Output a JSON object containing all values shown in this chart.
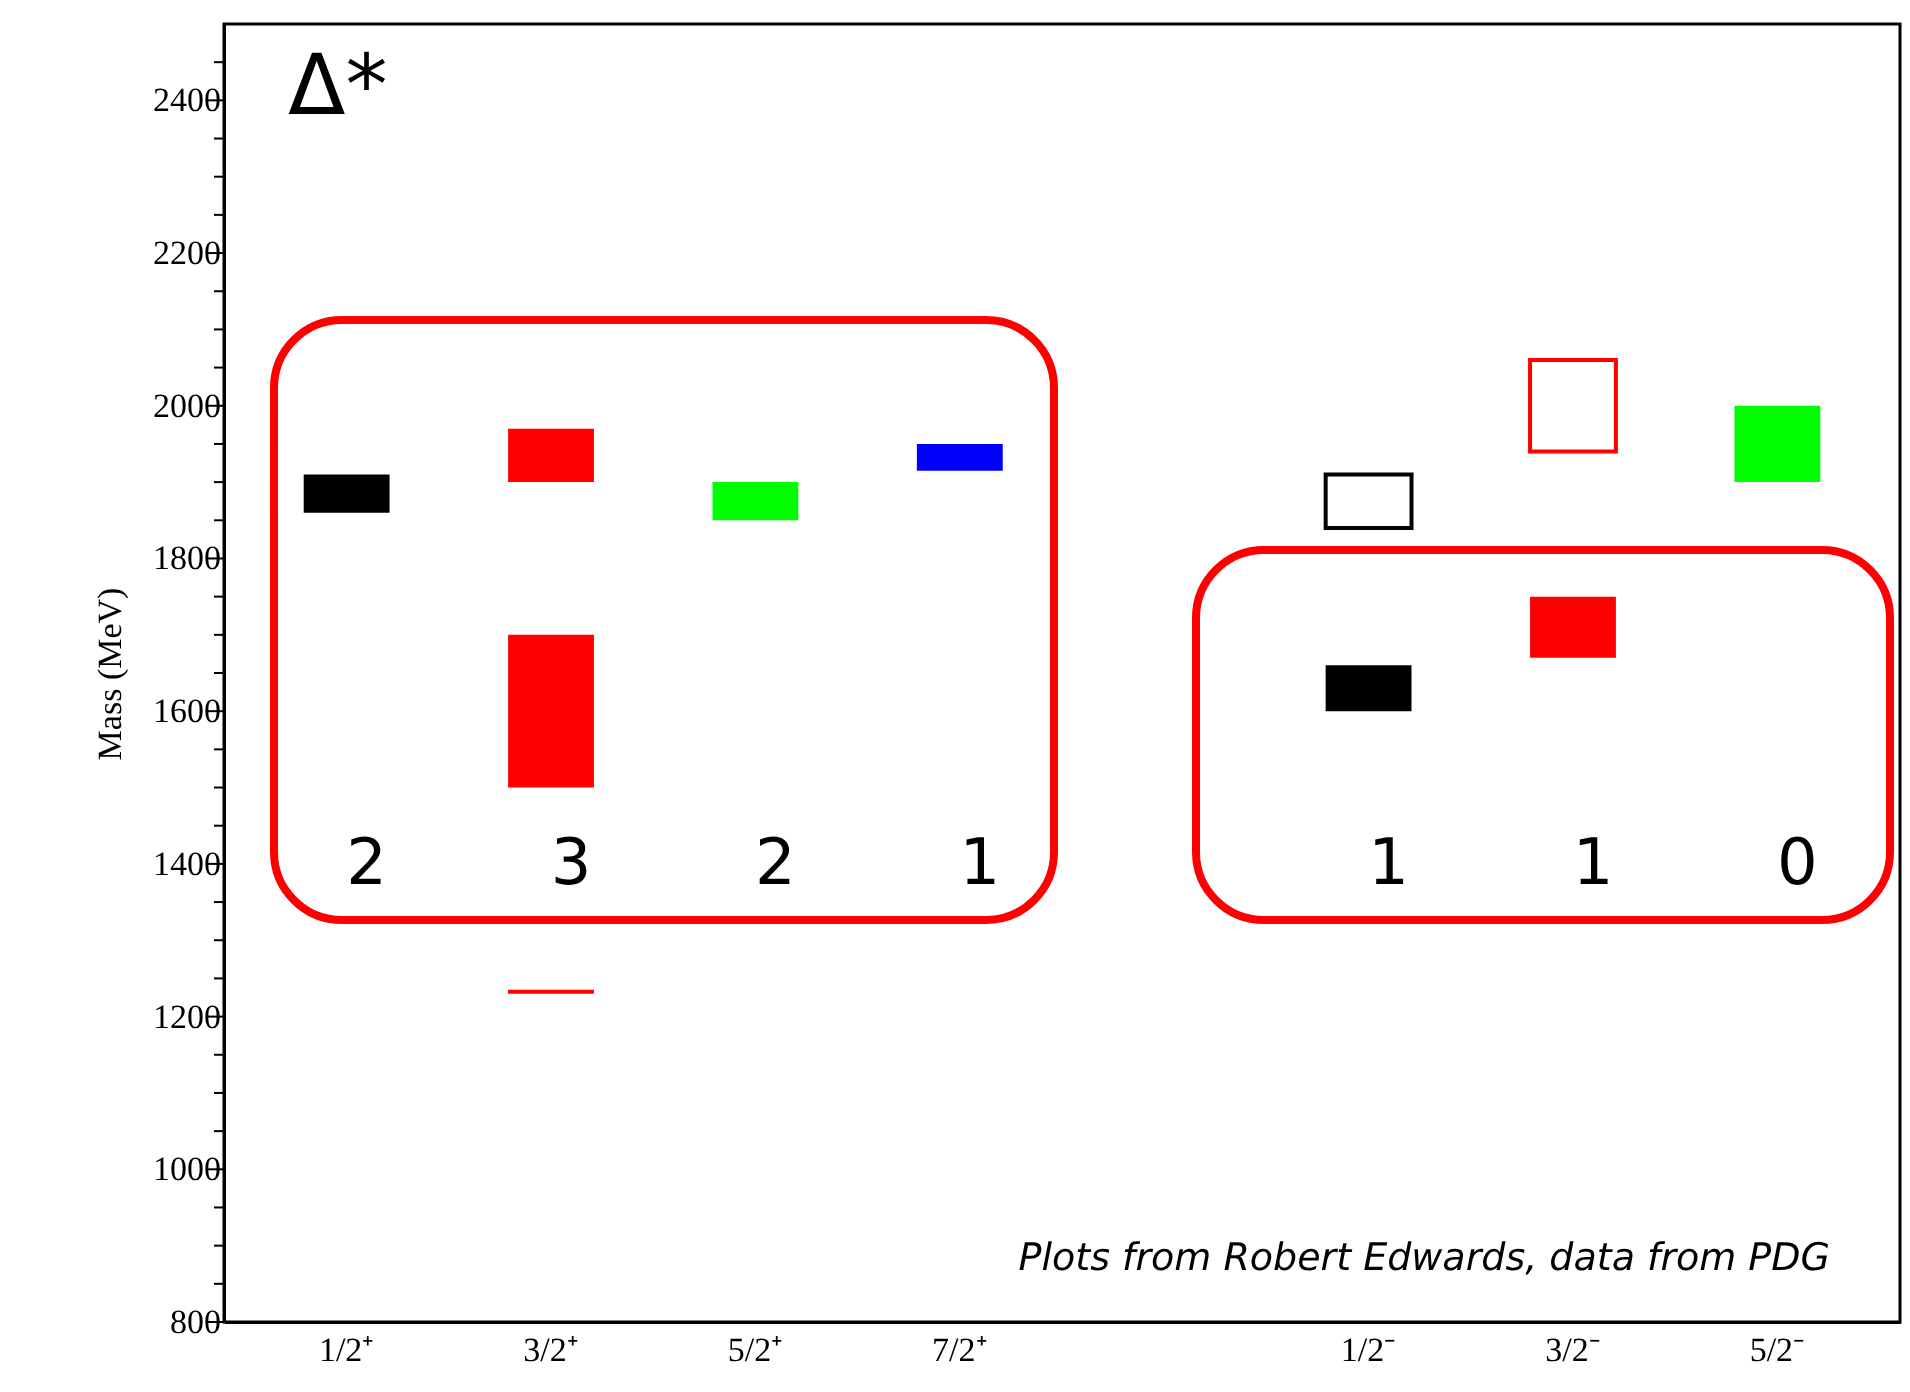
{
  "chart_data": {
    "type": "bar",
    "title": "Δ*",
    "ylabel": "Mass (MeV)",
    "categories": [
      "1/2⁺",
      "3/2⁺",
      "5/2⁺",
      "7/2⁺",
      null,
      "1/2⁻",
      "3/2⁻",
      "5/2⁻"
    ],
    "series": [
      {
        "colors": [
          "#000000",
          "#ff0000",
          "#00ff00",
          "#0000ff",
          null,
          "#000000",
          "#ff0000",
          "#00ff00"
        ],
        "base": [
          1860,
          1900,
          1850,
          1915,
          null,
          1600,
          1670,
          1900
        ],
        "values": [
          50,
          70,
          50,
          35,
          null,
          60,
          80,
          100
        ]
      },
      {
        "color": "#ff0000",
        "base": [
          null,
          1500,
          null,
          null,
          null,
          null,
          null,
          null
        ],
        "values": [
          null,
          200,
          null,
          null,
          null,
          null,
          null,
          null
        ]
      },
      {
        "color": "#ff0000",
        "base": [
          null,
          1230,
          null,
          null,
          null,
          null,
          null,
          null
        ],
        "values": [
          null,
          5,
          null,
          null,
          null,
          null,
          null,
          null
        ]
      },
      {
        "colors": [
          null,
          null,
          null,
          null,
          null,
          "#000000",
          "#ff0000",
          null
        ],
        "line_style": "solid",
        "base": [
          null,
          null,
          null,
          null,
          null,
          1840,
          1940,
          null
        ],
        "values": [
          null,
          null,
          null,
          null,
          null,
          70,
          120,
          null
        ]
      }
    ],
    "ylim": [
      800,
      2500
    ],
    "yticks": [
      800,
      {
        "value": 850,
        "label": null
      },
      {
        "value": 900,
        "label": null
      },
      {
        "value": 950,
        "label": null
      },
      1000,
      {
        "value": 1050,
        "label": null
      },
      {
        "value": 1100,
        "label": null
      },
      {
        "value": 1150,
        "label": null
      },
      1200,
      {
        "value": 1250,
        "label": null
      },
      {
        "value": 1300,
        "label": null
      },
      {
        "value": 1350,
        "label": null
      },
      1400,
      {
        "value": 1450,
        "label": null
      },
      {
        "value": 1500,
        "label": null
      },
      {
        "value": 1550,
        "label": null
      },
      1600,
      {
        "value": 1650,
        "label": null
      },
      {
        "value": 1700,
        "label": null
      },
      {
        "value": 1750,
        "label": null
      },
      1800,
      {
        "value": 1850,
        "label": null
      },
      {
        "value": 1900,
        "label": null
      },
      {
        "value": 1950,
        "label": null
      },
      2000,
      {
        "value": 2050,
        "label": null
      },
      {
        "value": 2100,
        "label": null
      },
      {
        "value": 2150,
        "label": null
      },
      2200,
      {
        "value": 2250,
        "label": null
      },
      {
        "value": 2300,
        "label": null
      },
      {
        "value": 2350,
        "label": null
      },
      2400,
      {
        "value": 2450,
        "label": null
      }
    ],
    "grid": false,
    "annotations": [
      "2",
      "3",
      "2",
      "1",
      "1",
      "1",
      "0",
      "Plots from Robert Edwards, data from PDG"
    ]
  }
}
